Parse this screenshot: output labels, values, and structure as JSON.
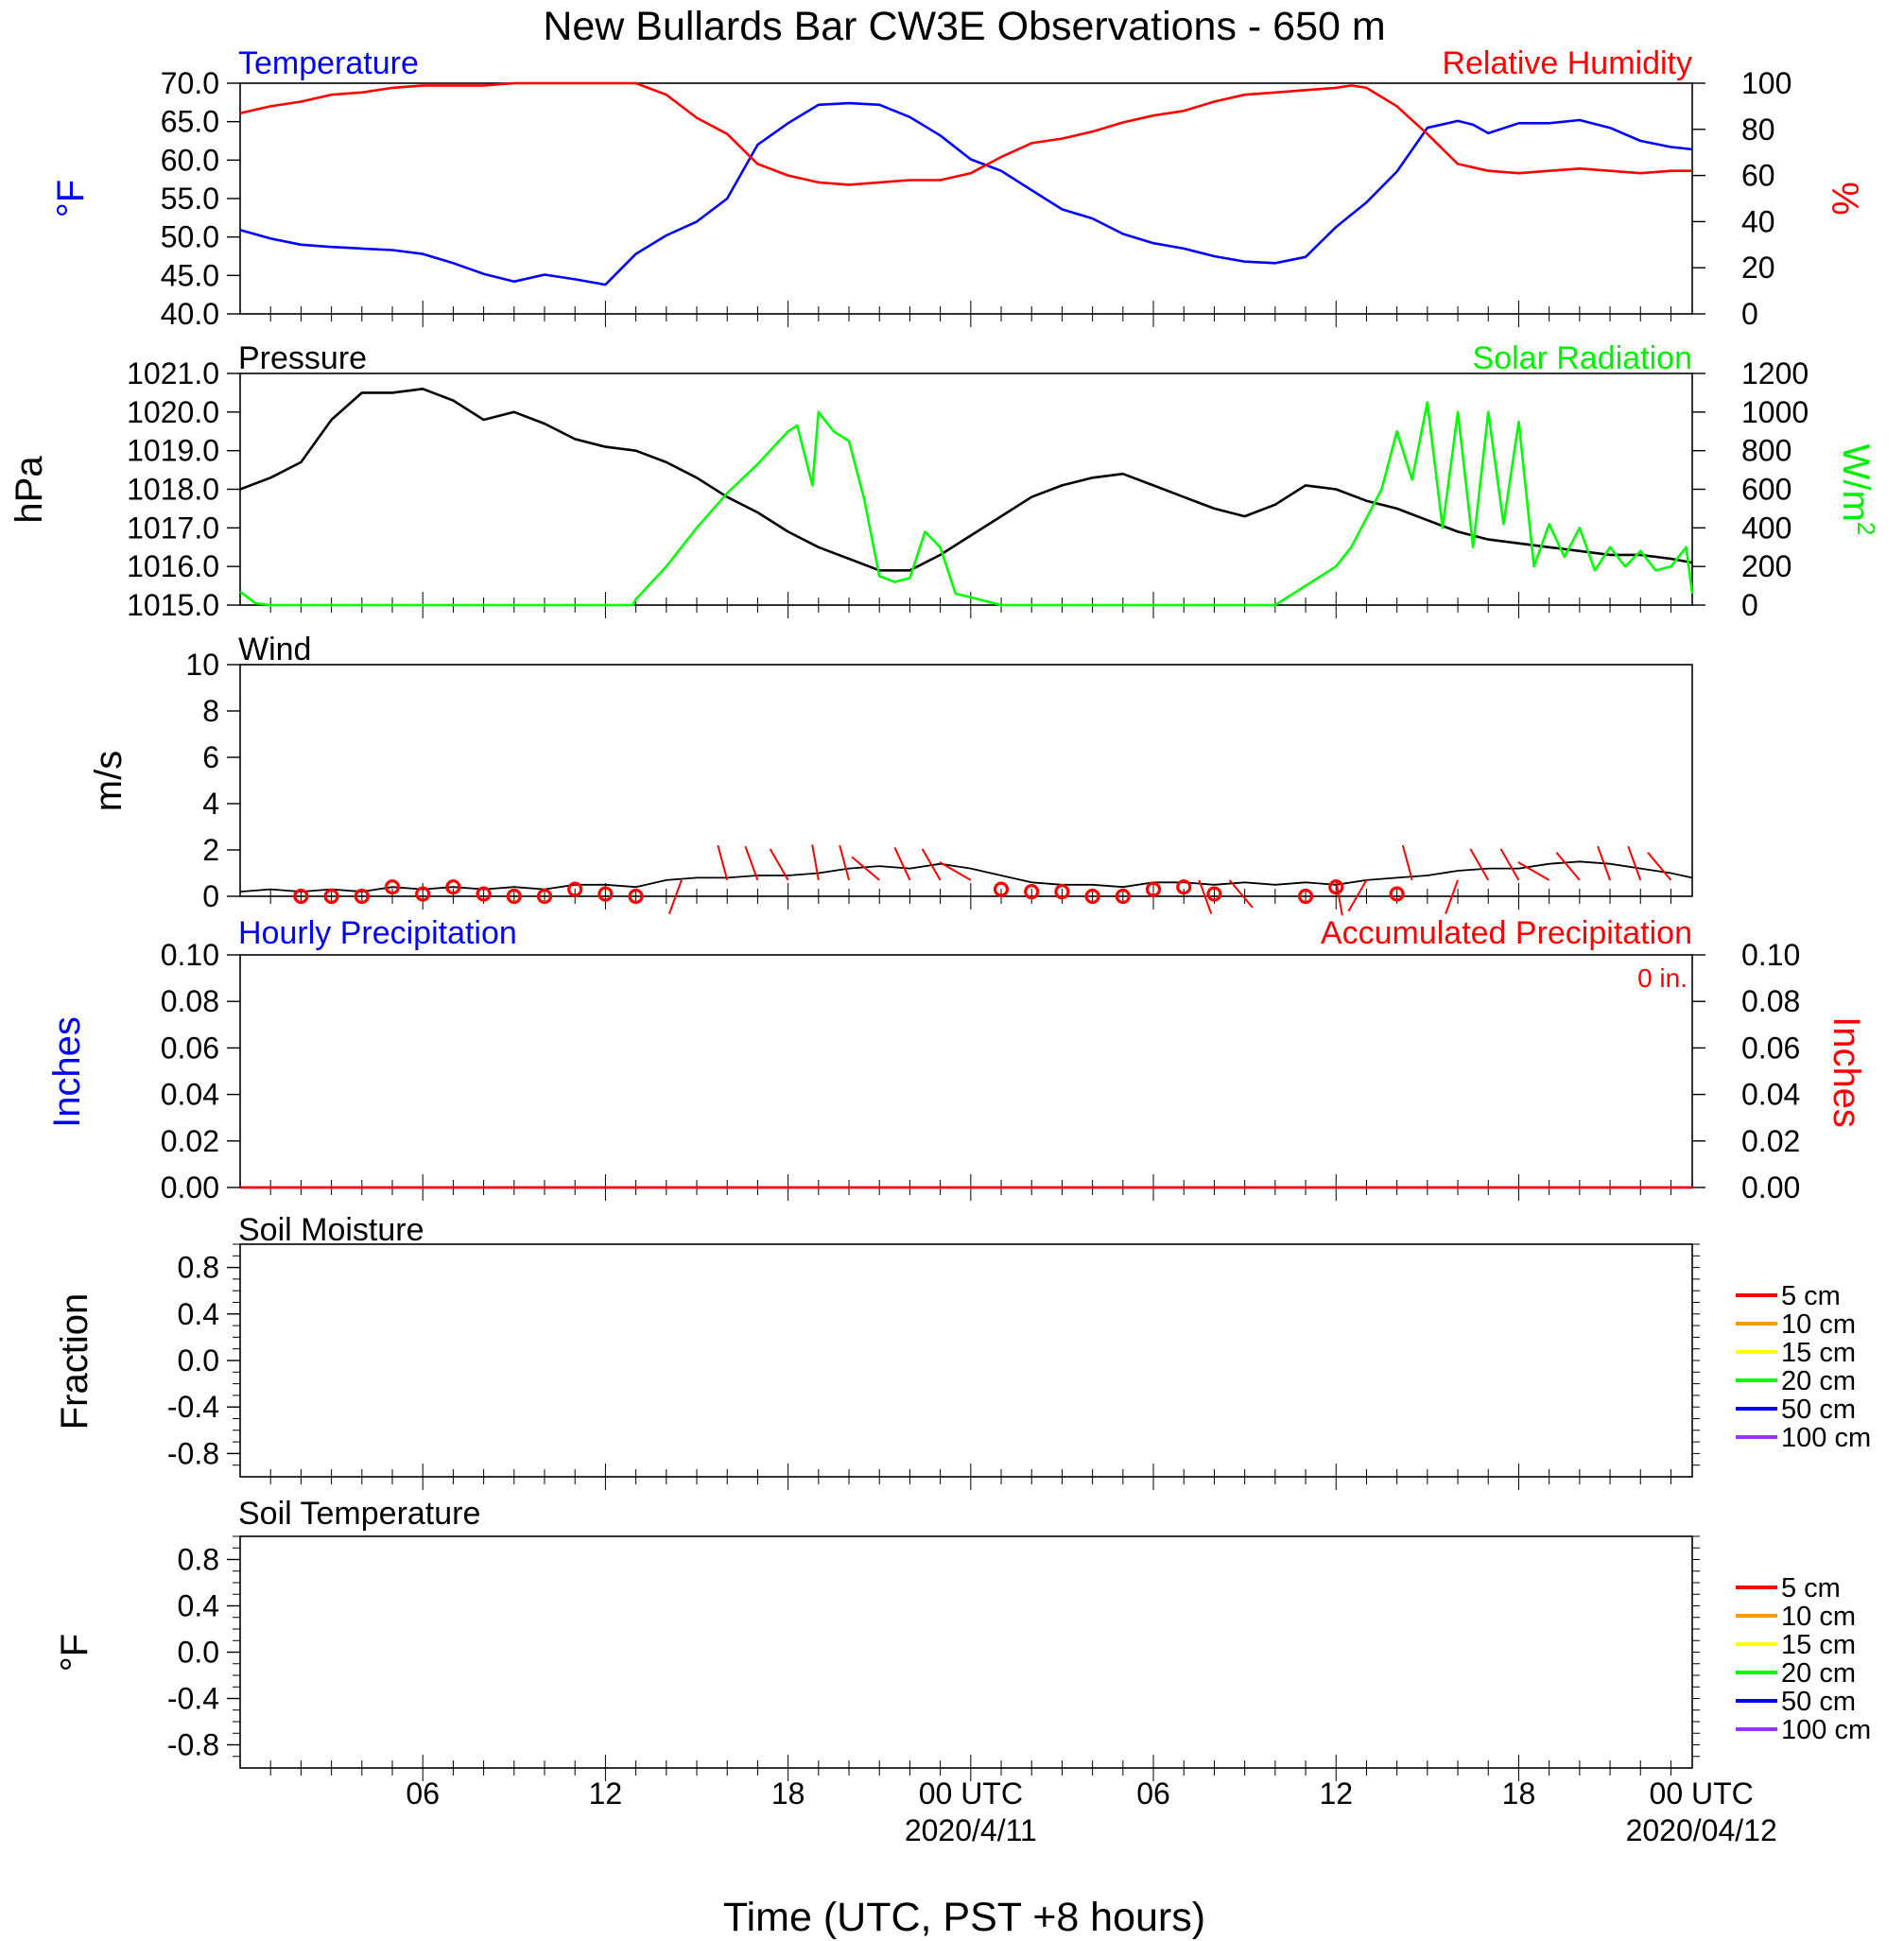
{
  "chart_data": [
    {
      "type": "line",
      "title": "Temperature",
      "ylabel": "°F",
      "ylim": [
        40,
        70
      ],
      "yticks": [
        "70.0",
        "65.0",
        "60.0",
        "55.0",
        "50.0",
        "45.0",
        "40.0"
      ],
      "right_title": "Relative Humidity",
      "right_ylabel": "%",
      "right_ylim": [
        0,
        100
      ],
      "right_yticks": [
        "100",
        "80",
        "60",
        "40",
        "20",
        "0"
      ],
      "series": [
        {
          "name": "Temperature",
          "axis": "left",
          "color": "#0000ff",
          "x": [
            0,
            1,
            2,
            3,
            4,
            5,
            6,
            7,
            8,
            9,
            10,
            11,
            12,
            13,
            13.5,
            14,
            15,
            16,
            16.5,
            17,
            18,
            19,
            20,
            21,
            22,
            23,
            24,
            25,
            26,
            27,
            28,
            29,
            30,
            31,
            32,
            33,
            34,
            35,
            36,
            37,
            38,
            39,
            40,
            40.5,
            41,
            42,
            43,
            44,
            45,
            46,
            47,
            47.7
          ],
          "y": [
            50.9,
            49.8,
            49,
            48.7,
            48.5,
            48.3,
            47.8,
            46.6,
            45.2,
            44.2,
            45.1,
            44.5,
            43.8,
            47.8,
            49,
            50.2,
            52,
            55,
            58.5,
            62,
            64.8,
            67.2,
            67.4,
            67.2,
            65.6,
            63.2,
            60.1,
            58.6,
            56.1,
            53.6,
            52.4,
            50.4,
            49.2,
            48.5,
            47.5,
            46.8,
            46.6,
            47.4,
            51.3,
            54.5,
            58.5,
            64.2,
            65.1,
            64.6,
            63.5,
            64.8,
            64.8,
            65.2,
            64.2,
            62.5,
            61.7,
            61.4
          ]
        },
        {
          "name": "Relative Humidity",
          "axis": "right",
          "color": "#ff0000",
          "x": [
            0,
            1,
            2,
            3,
            4,
            5,
            6,
            7,
            8,
            9,
            10,
            11,
            12,
            13,
            14,
            14.5,
            15,
            16,
            17,
            18,
            19,
            20,
            21,
            22,
            23,
            24,
            25,
            26,
            27,
            28,
            29,
            30,
            31,
            32,
            33,
            34,
            35,
            36,
            36.5,
            37,
            38,
            39,
            40,
            41,
            42,
            43,
            44,
            45,
            46,
            47,
            47.7
          ],
          "y": [
            87,
            90,
            92,
            95,
            96,
            98,
            99,
            99,
            99,
            100,
            100,
            100,
            100,
            100,
            95,
            90,
            85,
            78,
            65,
            60,
            57,
            56,
            57,
            58,
            58,
            61,
            68,
            74,
            76,
            79,
            83,
            86,
            88,
            92,
            95,
            96,
            97,
            98,
            99,
            98,
            90,
            78,
            65,
            62,
            61,
            62,
            63,
            62,
            61,
            62,
            62
          ]
        }
      ]
    },
    {
      "type": "line",
      "title": "Pressure",
      "ylabel": "hPa",
      "ylim": [
        1015,
        1021
      ],
      "yticks": [
        "1021.0",
        "1020.0",
        "1019.0",
        "1018.0",
        "1017.0",
        "1016.0",
        "1015.0"
      ],
      "right_title": "Solar Radiation",
      "right_ylabel": "W/m",
      "right_ylabel_sup": "2",
      "right_ylim": [
        0,
        1200
      ],
      "right_yticks": [
        "1200",
        "1000",
        "800",
        "600",
        "400",
        "200",
        "0"
      ],
      "series": [
        {
          "name": "Pressure",
          "axis": "left",
          "color": "#000000",
          "x": [
            0,
            1,
            2,
            3,
            4,
            5,
            6,
            7,
            8,
            9,
            10,
            11,
            12,
            13,
            14,
            15,
            16,
            17,
            18,
            19,
            20,
            21,
            22,
            23,
            24,
            25,
            26,
            27,
            28,
            29,
            30,
            31,
            32,
            33,
            34,
            35,
            36,
            37,
            38,
            39,
            40,
            41,
            42,
            43,
            44,
            45,
            46,
            47,
            47.7
          ],
          "y": [
            1018,
            1018.3,
            1018.7,
            1019.8,
            1020.5,
            1020.5,
            1020.6,
            1020.3,
            1019.8,
            1020,
            1019.7,
            1019.3,
            1019.1,
            1019,
            1018.7,
            1018.3,
            1017.8,
            1017.4,
            1016.9,
            1016.5,
            1016.2,
            1015.9,
            1015.9,
            1016.3,
            1016.8,
            1017.3,
            1017.8,
            1018.1,
            1018.3,
            1018.4,
            1018.1,
            1017.8,
            1017.5,
            1017.3,
            1017.6,
            1018.1,
            1018,
            1017.7,
            1017.5,
            1017.2,
            1016.9,
            1016.7,
            1016.6,
            1016.5,
            1016.4,
            1016.3,
            1016.3,
            1016.2,
            1016.1
          ]
        },
        {
          "name": "Solar Radiation",
          "axis": "right",
          "color": "#00ff00",
          "x": [
            0,
            0.5,
            1,
            2,
            3,
            4,
            5,
            6,
            7,
            8,
            9,
            10,
            11,
            12,
            12.9,
            13,
            14,
            15,
            16,
            17,
            18,
            18.3,
            18.8,
            19,
            19.5,
            20,
            20.5,
            21,
            21.5,
            22,
            22.5,
            23,
            23.5,
            24,
            25,
            26,
            27,
            28,
            29,
            30,
            31,
            32,
            33,
            34,
            35,
            36,
            36.5,
            37,
            37.5,
            38,
            38.5,
            39,
            39.5,
            40,
            40.5,
            41,
            41.5,
            42,
            42.5,
            43,
            43.5,
            44,
            44.5,
            45,
            45.5,
            46,
            46.5,
            47,
            47.5,
            47.7
          ],
          "y": [
            70,
            10,
            0,
            0,
            0,
            0,
            0,
            0,
            0,
            0,
            0,
            0,
            0,
            0,
            0,
            30,
            200,
            400,
            580,
            730,
            900,
            930,
            620,
            1000,
            900,
            850,
            550,
            150,
            120,
            140,
            380,
            300,
            60,
            40,
            0,
            0,
            0,
            0,
            0,
            0,
            0,
            0,
            0,
            0,
            100,
            200,
            300,
            450,
            600,
            900,
            650,
            1050,
            400,
            1000,
            300,
            1000,
            420,
            950,
            200,
            420,
            250,
            400,
            180,
            300,
            200,
            280,
            180,
            200,
            300,
            60
          ]
        }
      ]
    },
    {
      "type": "line",
      "title": "Wind",
      "ylabel": "m/s",
      "ylim": [
        0,
        10
      ],
      "yticks": [
        "10",
        "8",
        "6",
        "4",
        "2",
        "0"
      ],
      "series": [
        {
          "name": "Wind",
          "color": "#000000",
          "x": [
            0,
            1,
            2,
            3,
            4,
            5,
            6,
            7,
            8,
            9,
            10,
            11,
            12,
            13,
            14,
            15,
            16,
            17,
            18,
            19,
            20,
            21,
            22,
            23,
            24,
            25,
            26,
            27,
            28,
            29,
            30,
            31,
            32,
            33,
            34,
            35,
            36,
            37,
            38,
            39,
            40,
            41,
            42,
            43,
            44,
            45,
            46,
            47,
            47.7
          ],
          "y": [
            0.2,
            0.3,
            0.2,
            0.3,
            0.2,
            0.4,
            0.3,
            0.4,
            0.3,
            0.4,
            0.3,
            0.5,
            0.5,
            0.4,
            0.7,
            0.8,
            0.8,
            0.9,
            0.9,
            1,
            1.2,
            1.3,
            1.2,
            1.4,
            1.2,
            0.9,
            0.6,
            0.5,
            0.5,
            0.4,
            0.6,
            0.6,
            0.5,
            0.6,
            0.5,
            0.6,
            0.5,
            0.7,
            0.8,
            0.9,
            1.1,
            1.2,
            1.2,
            1.4,
            1.5,
            1.4,
            1.2,
            1.0,
            0.8
          ]
        }
      ],
      "barbs": {
        "color": "#ff0000",
        "calm_hours": [
          2,
          3,
          4,
          5,
          6,
          7,
          8,
          9,
          10,
          11,
          12,
          13,
          25,
          26,
          27,
          28,
          29,
          30,
          31,
          32,
          35,
          36,
          38
        ],
        "calm_values": [
          0,
          0,
          0,
          0.4,
          0.1,
          0.4,
          0.1,
          0,
          0,
          0.3,
          0.1,
          0,
          0.3,
          0.2,
          0.2,
          0,
          0,
          0.3,
          0.4,
          0.1,
          0,
          0.4,
          0.1
        ],
        "barb_hours": [
          14.5,
          16,
          17,
          18,
          19,
          20,
          21,
          22,
          23,
          24,
          31.5,
          32.5,
          36,
          37,
          38.5,
          40,
          41,
          42,
          43,
          44,
          45,
          46,
          47
        ],
        "barb_dirs": [
          200,
          345,
          340,
          330,
          350,
          345,
          310,
          335,
          330,
          300,
          160,
          140,
          170,
          210,
          345,
          200,
          330,
          330,
          300,
          320,
          340,
          340,
          320
        ]
      }
    },
    {
      "type": "line",
      "title": "Hourly Precipitation",
      "ylabel": "Inches",
      "ylim": [
        0,
        0.1
      ],
      "yticks": [
        "0.10",
        "0.08",
        "0.06",
        "0.04",
        "0.02",
        "0.00"
      ],
      "right_title": "Accumulated Precipitation",
      "right_ylabel": "Inches",
      "right_ylim": [
        0,
        0.1
      ],
      "right_yticks": [
        "0.10",
        "0.08",
        "0.06",
        "0.04",
        "0.02",
        "0.00"
      ],
      "annotation": "0 in.",
      "series": [
        {
          "name": "Hourly Precipitation",
          "axis": "left",
          "color": "#0000ff",
          "x": [
            0,
            47.7
          ],
          "y": [
            0,
            0
          ]
        },
        {
          "name": "Accumulated Precipitation",
          "axis": "right",
          "color": "#ff0000",
          "x": [
            0,
            47.7
          ],
          "y": [
            0,
            0
          ]
        }
      ]
    },
    {
      "type": "line",
      "title": "Soil Moisture",
      "ylabel": "Fraction",
      "ylim": [
        -1,
        1
      ],
      "yticks": [
        "0.8",
        "0.4",
        "0.0",
        "-0.4",
        "-0.8"
      ],
      "legend": [
        {
          "label": "5 cm",
          "color": "#ff0000"
        },
        {
          "label": "10 cm",
          "color": "#ff9900"
        },
        {
          "label": "15 cm",
          "color": "#ffff00"
        },
        {
          "label": "20 cm",
          "color": "#00ff00"
        },
        {
          "label": "50 cm",
          "color": "#0000ff"
        },
        {
          "label": "100 cm",
          "color": "#9933ff"
        }
      ],
      "series": []
    },
    {
      "type": "line",
      "title": "Soil Temperature",
      "ylabel": "°F",
      "ylim": [
        -1,
        1
      ],
      "yticks": [
        "0.8",
        "0.4",
        "0.0",
        "-0.4",
        "-0.8"
      ],
      "legend": [
        {
          "label": "5 cm",
          "color": "#ff0000"
        },
        {
          "label": "10 cm",
          "color": "#ff9900"
        },
        {
          "label": "15 cm",
          "color": "#ffff00"
        },
        {
          "label": "20 cm",
          "color": "#00ff00"
        },
        {
          "label": "50 cm",
          "color": "#0000ff"
        },
        {
          "label": "100 cm",
          "color": "#9933ff"
        }
      ],
      "series": []
    }
  ],
  "figure": {
    "title": "New Bullards Bar CW3E Observations - 650 m",
    "xlabel": "Time (UTC, PST +8 hours)",
    "xlim": [
      0,
      47.7
    ],
    "xticks": [
      {
        "hour": 6,
        "label": "06",
        "date": ""
      },
      {
        "hour": 12,
        "label": "12",
        "date": ""
      },
      {
        "hour": 18,
        "label": "18",
        "date": ""
      },
      {
        "hour": 24,
        "label": "00 UTC",
        "date": "2020/4/11"
      },
      {
        "hour": 30,
        "label": "06",
        "date": ""
      },
      {
        "hour": 36,
        "label": "12",
        "date": ""
      },
      {
        "hour": 42,
        "label": "18",
        "date": ""
      },
      {
        "hour": 48,
        "label": "00 UTC",
        "date": "2020/04/12"
      }
    ]
  }
}
